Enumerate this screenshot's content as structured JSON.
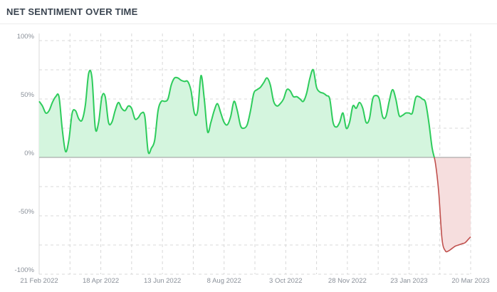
{
  "header": {
    "title": "NET SENTIMENT OVER TIME"
  },
  "colors": {
    "positive_line": "#2ecc5c",
    "positive_fill": "#d4f5de",
    "negative_line": "#c0504d",
    "negative_fill": "#f6dede",
    "grid": "#d8d8d8",
    "zero_line": "#9a9a9a"
  },
  "chart_data": {
    "type": "area",
    "title": "NET SENTIMENT OVER TIME",
    "xlabel": "",
    "ylabel": "",
    "x_start": "2022-02-21",
    "x_end": "2023-03-20",
    "ylim": [
      -100,
      100
    ],
    "y_ticks": [
      {
        "value": 100,
        "label": "100%"
      },
      {
        "value": 50,
        "label": "50%"
      },
      {
        "value": 0,
        "label": "0%"
      },
      {
        "value": -50,
        "label": "-50%"
      },
      {
        "value": -100,
        "label": "-100%"
      }
    ],
    "x_ticks": [
      {
        "date": "2022-02-21",
        "label": "21 Feb 2022"
      },
      {
        "date": "2022-04-18",
        "label": "18 Apr 2022"
      },
      {
        "date": "2022-06-13",
        "label": "13 Jun 2022"
      },
      {
        "date": "2022-08-08",
        "label": "8 Aug 2022"
      },
      {
        "date": "2022-10-03",
        "label": "3 Oct 2022"
      },
      {
        "date": "2022-11-28",
        "label": "28 Nov 2022"
      },
      {
        "date": "2023-01-23",
        "label": "23 Jan 2023"
      },
      {
        "date": "2023-03-20",
        "label": "20 Mar 2023"
      }
    ],
    "grid": true,
    "legend": "none",
    "series": [
      {
        "x": [
          "2022-02-21",
          "2022-02-24",
          "2022-02-27",
          "2022-03-02",
          "2022-03-05",
          "2022-03-08",
          "2022-03-11",
          "2022-03-14",
          "2022-03-17",
          "2022-03-20",
          "2022-03-23",
          "2022-03-26",
          "2022-03-29",
          "2022-04-01",
          "2022-04-04",
          "2022-04-07",
          "2022-04-10",
          "2022-04-13",
          "2022-04-16",
          "2022-04-19",
          "2022-04-22",
          "2022-04-25",
          "2022-04-28",
          "2022-05-01",
          "2022-05-04",
          "2022-05-07",
          "2022-05-10",
          "2022-05-13",
          "2022-05-16",
          "2022-05-19",
          "2022-05-22",
          "2022-05-25",
          "2022-05-28",
          "2022-05-31",
          "2022-06-03",
          "2022-06-06",
          "2022-06-09",
          "2022-06-12",
          "2022-06-15",
          "2022-06-18",
          "2022-06-21",
          "2022-06-24",
          "2022-06-27",
          "2022-06-30",
          "2022-07-03",
          "2022-07-06",
          "2022-07-09",
          "2022-07-12",
          "2022-07-15",
          "2022-07-18",
          "2022-07-21",
          "2022-07-24",
          "2022-07-27",
          "2022-07-30",
          "2022-08-02",
          "2022-08-05",
          "2022-08-08",
          "2022-08-11",
          "2022-08-14",
          "2022-08-17",
          "2022-08-20",
          "2022-08-23",
          "2022-08-26",
          "2022-08-29",
          "2022-09-01",
          "2022-09-04",
          "2022-09-07",
          "2022-09-10",
          "2022-09-13",
          "2022-09-16",
          "2022-09-19",
          "2022-09-22",
          "2022-09-25",
          "2022-09-28",
          "2022-10-01",
          "2022-10-04",
          "2022-10-07",
          "2022-10-10",
          "2022-10-13",
          "2022-10-16",
          "2022-10-19",
          "2022-10-22",
          "2022-10-25",
          "2022-10-28",
          "2022-10-31",
          "2022-11-03",
          "2022-11-06",
          "2022-11-09",
          "2022-11-12",
          "2022-11-15",
          "2022-11-18",
          "2022-11-21",
          "2022-11-24",
          "2022-11-27",
          "2022-11-30",
          "2022-12-03",
          "2022-12-06",
          "2022-12-09",
          "2022-12-12",
          "2022-12-15",
          "2022-12-18",
          "2022-12-21",
          "2022-12-24",
          "2022-12-27",
          "2022-12-30",
          "2023-01-02",
          "2023-01-05",
          "2023-01-08",
          "2023-01-11",
          "2023-01-14",
          "2023-01-17",
          "2023-01-20",
          "2023-01-23",
          "2023-01-26",
          "2023-01-29",
          "2023-02-01",
          "2023-02-04",
          "2023-02-07",
          "2023-02-10",
          "2023-02-13",
          "2023-02-16",
          "2023-02-19",
          "2023-02-22",
          "2023-02-25",
          "2023-02-28",
          "2023-03-03",
          "2023-03-06",
          "2023-03-09",
          "2023-03-12",
          "2023-03-15",
          "2023-03-18",
          "2023-03-20"
        ],
        "y": [
          48,
          44,
          38,
          40,
          47,
          52,
          52,
          24,
          5,
          15,
          38,
          40,
          33,
          32,
          45,
          72,
          68,
          25,
          30,
          52,
          52,
          30,
          30,
          40,
          47,
          42,
          40,
          44,
          42,
          33,
          34,
          38,
          35,
          5,
          8,
          15,
          40,
          48,
          48,
          50,
          62,
          68,
          68,
          66,
          65,
          65,
          57,
          38,
          40,
          70,
          50,
          22,
          30,
          40,
          46,
          38,
          30,
          28,
          35,
          48,
          40,
          27,
          25,
          28,
          40,
          55,
          58,
          60,
          64,
          68,
          62,
          48,
          44,
          46,
          50,
          58,
          57,
          52,
          52,
          50,
          48,
          55,
          68,
          75,
          60,
          56,
          55,
          53,
          50,
          30,
          26,
          30,
          38,
          25,
          30,
          44,
          42,
          47,
          42,
          30,
          33,
          50,
          53,
          50,
          35,
          35,
          48,
          58,
          50,
          36,
          36,
          38,
          38,
          38,
          51,
          52,
          50,
          47,
          30,
          8,
          -5,
          -30,
          -70,
          -80,
          -80,
          -78,
          -76,
          -75,
          -74,
          -73,
          -70,
          -68
        ]
      }
    ]
  }
}
